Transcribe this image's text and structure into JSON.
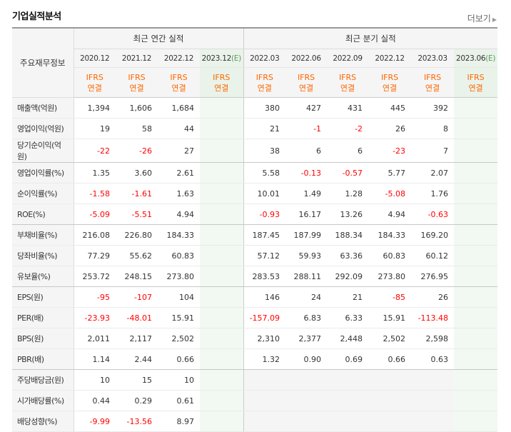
{
  "title": "기업실적분석",
  "more_label": "더보기",
  "header": {
    "stub_label": "주요재무정보",
    "annual_label": "최근 연간 실적",
    "quarter_label": "최근 분기 실적",
    "annual_periods": [
      "2020.12",
      "2021.12",
      "2022.12",
      "2023.12"
    ],
    "annual_est_mark": "(E)",
    "quarter_periods": [
      "2022.03",
      "2022.06",
      "2022.09",
      "2022.12",
      "2023.03",
      "2023.06"
    ],
    "quarter_est_mark": "(E)",
    "ifrs_top": "IFRS",
    "ifrs_bottom": "연결"
  },
  "rows": [
    {
      "label": "매출액(억원)",
      "cells": [
        "1,394",
        "1,606",
        "1,684",
        "",
        "380",
        "427",
        "431",
        "445",
        "392",
        ""
      ]
    },
    {
      "label": "영업이익(억원)",
      "cells": [
        "19",
        "58",
        "44",
        "",
        "21",
        "-1",
        "-2",
        "26",
        "8",
        ""
      ]
    },
    {
      "label": "당기순이익(억원)",
      "cells": [
        "-22",
        "-26",
        "27",
        "",
        "38",
        "6",
        "6",
        "-23",
        "7",
        ""
      ]
    },
    {
      "label": "영업이익률(%)",
      "cells": [
        "1.35",
        "3.60",
        "2.61",
        "",
        "5.58",
        "-0.13",
        "-0.57",
        "5.77",
        "2.07",
        ""
      ]
    },
    {
      "label": "순이익률(%)",
      "cells": [
        "-1.58",
        "-1.61",
        "1.63",
        "",
        "10.01",
        "1.49",
        "1.28",
        "-5.08",
        "1.76",
        ""
      ]
    },
    {
      "label": "ROE(%)",
      "cells": [
        "-5.09",
        "-5.51",
        "4.94",
        "",
        "-0.93",
        "16.17",
        "13.26",
        "4.94",
        "-0.63",
        ""
      ]
    },
    {
      "label": "부채비율(%)",
      "cells": [
        "216.08",
        "226.80",
        "184.33",
        "",
        "187.45",
        "187.99",
        "188.34",
        "184.33",
        "169.20",
        ""
      ]
    },
    {
      "label": "당좌비율(%)",
      "cells": [
        "77.29",
        "55.62",
        "60.83",
        "",
        "57.12",
        "59.93",
        "63.36",
        "60.83",
        "60.12",
        ""
      ]
    },
    {
      "label": "유보율(%)",
      "cells": [
        "253.72",
        "248.15",
        "273.80",
        "",
        "283.53",
        "288.11",
        "292.09",
        "273.80",
        "276.95",
        ""
      ]
    },
    {
      "label": "EPS(원)",
      "cells": [
        "-95",
        "-107",
        "104",
        "",
        "146",
        "24",
        "21",
        "-85",
        "26",
        ""
      ]
    },
    {
      "label": "PER(배)",
      "cells": [
        "-23.93",
        "-48.01",
        "15.91",
        "",
        "-157.09",
        "6.83",
        "6.33",
        "15.91",
        "-113.48",
        ""
      ]
    },
    {
      "label": "BPS(원)",
      "cells": [
        "2,011",
        "2,117",
        "2,502",
        "",
        "2,310",
        "2,377",
        "2,448",
        "2,502",
        "2,598",
        ""
      ]
    },
    {
      "label": "PBR(배)",
      "cells": [
        "1.14",
        "2.44",
        "0.66",
        "",
        "1.32",
        "0.90",
        "0.69",
        "0.66",
        "0.63",
        ""
      ]
    },
    {
      "label": "주당배당금(원)",
      "cells": [
        "10",
        "15",
        "10",
        "",
        "",
        "",
        "",
        "",
        "",
        ""
      ]
    },
    {
      "label": "시가배당률(%)",
      "cells": [
        "0.44",
        "0.29",
        "0.61",
        "",
        "",
        "",
        "",
        "",
        "",
        ""
      ]
    },
    {
      "label": "배당성향(%)",
      "cells": [
        "-9.99",
        "-13.56",
        "8.97",
        "",
        "",
        "",
        "",
        "",
        "",
        ""
      ]
    }
  ],
  "colors": {
    "negative": "#ff0000",
    "ifrs": "#ff6600",
    "estimate_bg": "#f2f8f2",
    "header_bg": "#f5f5f5"
  }
}
